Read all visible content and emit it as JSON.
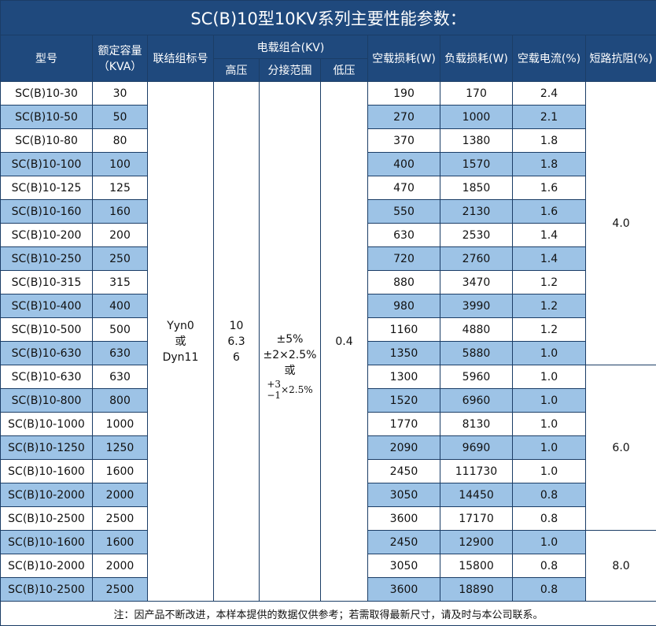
{
  "title": "SC(B)10型10KV系列主要性能参数：",
  "headers": {
    "model": "型号",
    "capacity": "额定容量",
    "capacity_unit": "（KVA）",
    "connection": "联结组标号",
    "voltage_group": "电载组合(KV)",
    "high": "高压",
    "tap": "分接范围",
    "low": "低压",
    "noload_loss": "空载损耗(W)",
    "load_loss": "负载损耗(W)",
    "noload_current": "空载电流(%)",
    "impedance": "短路抗阻(%)"
  },
  "merged": {
    "connection": [
      "Yyn0",
      "或",
      "Dyn11"
    ],
    "high": [
      "10",
      "6.3",
      "6"
    ],
    "tap": [
      "±5%",
      "±2×2.5%",
      "或"
    ],
    "tap_frac_top": "+3",
    "tap_frac_bottom": "−1",
    "tap_frac_tail": "×2.5%",
    "low": "0.4"
  },
  "impedance_groups": [
    {
      "value": "4.0",
      "rows": 12
    },
    {
      "value": "6.0",
      "rows": 7
    },
    {
      "value": "8.0",
      "rows": 3
    }
  ],
  "rows": [
    [
      "SC(B)10-30",
      "30",
      "190",
      "170",
      "2.4"
    ],
    [
      "SC(B)10-50",
      "50",
      "270",
      "1000",
      "2.1"
    ],
    [
      "SC(B)10-80",
      "80",
      "370",
      "1380",
      "1.8"
    ],
    [
      "SC(B)10-100",
      "100",
      "400",
      "1570",
      "1.8"
    ],
    [
      "SC(B)10-125",
      "125",
      "470",
      "1850",
      "1.6"
    ],
    [
      "SC(B)10-160",
      "160",
      "550",
      "2130",
      "1.6"
    ],
    [
      "SC(B)10-200",
      "200",
      "630",
      "2530",
      "1.4"
    ],
    [
      "SC(B)10-250",
      "250",
      "720",
      "2760",
      "1.4"
    ],
    [
      "SC(B)10-315",
      "315",
      "880",
      "3470",
      "1.2"
    ],
    [
      "SC(B)10-400",
      "400",
      "980",
      "3990",
      "1.2"
    ],
    [
      "SC(B)10-500",
      "500",
      "1160",
      "4880",
      "1.2"
    ],
    [
      "SC(B)10-630",
      "630",
      "1350",
      "5880",
      "1.0"
    ],
    [
      "SC(B)10-630",
      "630",
      "1300",
      "5960",
      "1.0"
    ],
    [
      "SC(B)10-800",
      "800",
      "1520",
      "6960",
      "1.0"
    ],
    [
      "SC(B)10-1000",
      "1000",
      "1770",
      "8130",
      "1.0"
    ],
    [
      "SC(B)10-1250",
      "1250",
      "2090",
      "9690",
      "1.0"
    ],
    [
      "SC(B)10-1600",
      "1600",
      "2450",
      "111730",
      "1.0"
    ],
    [
      "SC(B)10-2000",
      "2000",
      "3050",
      "14450",
      "0.8"
    ],
    [
      "SC(B)10-2500",
      "2500",
      "3600",
      "17170",
      "0.8"
    ],
    [
      "SC(B)10-1600",
      "1600",
      "2450",
      "12900",
      "1.0"
    ],
    [
      "SC(B)10-2000",
      "2000",
      "3050",
      "15800",
      "0.8"
    ],
    [
      "SC(B)10-2500",
      "2500",
      "3600",
      "18890",
      "0.8"
    ]
  ],
  "footer": "注：因产品不断改进，本样本提供的数据仅供参考；若需取得最新尺寸，请及时与本公司联系。",
  "colors": {
    "header": "#1f497d",
    "stripe": "#9dc3e6"
  }
}
